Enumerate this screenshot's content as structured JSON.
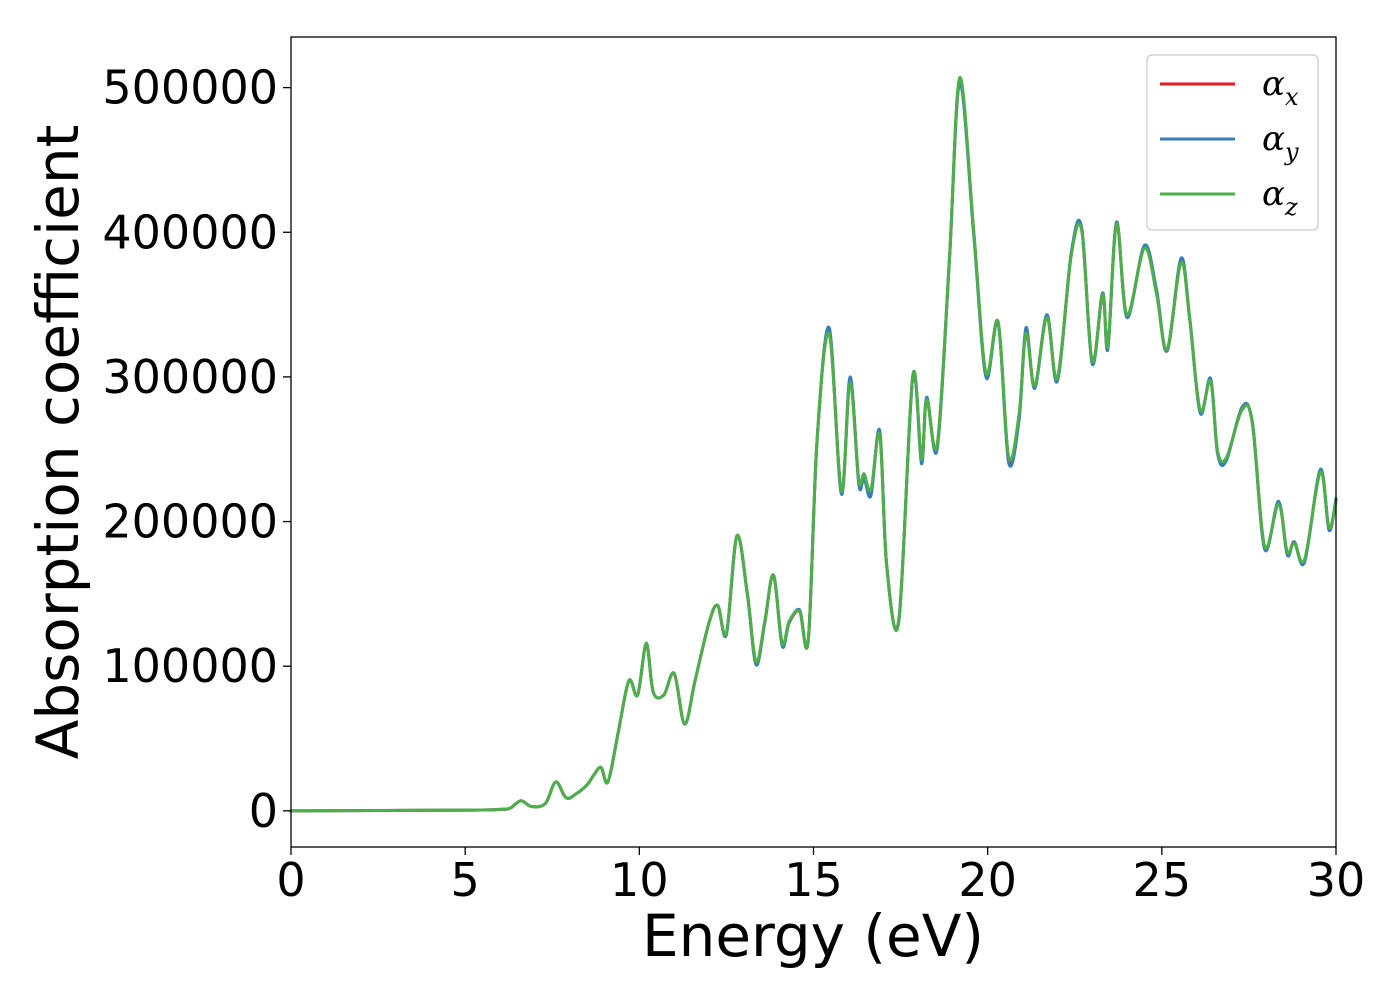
{
  "chart_data": {
    "type": "line",
    "title": "",
    "xlabel": "Energy (eV)",
    "ylabel": "Absorption coefficient",
    "xlim": [
      0,
      30
    ],
    "ylim": [
      -25000,
      535000
    ],
    "xticks": [
      0,
      5,
      10,
      15,
      20,
      25,
      30
    ],
    "yticks": [
      0,
      100000,
      200000,
      300000,
      400000,
      500000
    ],
    "grid": false,
    "legend_position": "top-right",
    "series": [
      {
        "name": "αx",
        "label_base": "α",
        "label_sub": "x",
        "color": "#e41a1c",
        "x": [
          0,
          5,
          6.0,
          6.3,
          6.6,
          6.9,
          7.3,
          7.6,
          7.9,
          8.2,
          8.5,
          8.7,
          8.9,
          9.1,
          9.4,
          9.7,
          9.95,
          10.2,
          10.4,
          10.7,
          11.0,
          11.3,
          11.6,
          12.0,
          12.25,
          12.5,
          12.8,
          13.1,
          13.35,
          13.6,
          13.85,
          14.1,
          14.3,
          14.6,
          14.85,
          15.1,
          15.45,
          15.8,
          16.05,
          16.3,
          16.45,
          16.65,
          16.9,
          17.1,
          17.45,
          17.85,
          18.1,
          18.25,
          18.55,
          18.9,
          19.2,
          19.6,
          19.95,
          20.3,
          20.6,
          20.9,
          21.1,
          21.35,
          21.7,
          22.0,
          22.4,
          22.7,
          23.0,
          23.3,
          23.45,
          23.7,
          24.0,
          24.5,
          24.85,
          25.15,
          25.55,
          25.8,
          26.1,
          26.4,
          26.6,
          26.85,
          27.3,
          27.6,
          27.95,
          28.35,
          28.6,
          28.8,
          29.1,
          29.55,
          29.8,
          30
        ],
        "y": [
          0,
          500,
          1000,
          2000,
          7000,
          3000,
          5000,
          20000,
          9000,
          12000,
          18000,
          25000,
          30000,
          20000,
          55000,
          90000,
          80000,
          115000,
          82000,
          80000,
          95000,
          60000,
          90000,
          130000,
          142000,
          122000,
          190000,
          150000,
          102000,
          130000,
          163000,
          115000,
          130000,
          138000,
          118000,
          255000,
          332000,
          220000,
          298000,
          228000,
          232000,
          220000,
          262000,
          170000,
          132000,
          300000,
          242000,
          285000,
          252000,
          380000,
          505000,
          400000,
          302000,
          338000,
          243000,
          272000,
          332000,
          293000,
          342000,
          298000,
          385000,
          402000,
          310000,
          358000,
          320000,
          407000,
          342000,
          390000,
          358000,
          318000,
          380000,
          340000,
          276000,
          298000,
          248000,
          243000,
          278000,
          268000,
          182000,
          213000,
          178000,
          186000,
          173000,
          235000,
          195000,
          215000
        ]
      },
      {
        "name": "αy",
        "label_base": "α",
        "label_sub": "y",
        "color": "#377eb8",
        "x": [
          0,
          5,
          6.0,
          6.3,
          6.6,
          6.9,
          7.3,
          7.6,
          7.9,
          8.2,
          8.5,
          8.7,
          8.9,
          9.1,
          9.4,
          9.7,
          9.95,
          10.2,
          10.4,
          10.7,
          11.0,
          11.3,
          11.6,
          12.0,
          12.25,
          12.5,
          12.8,
          13.1,
          13.35,
          13.6,
          13.85,
          14.1,
          14.3,
          14.6,
          14.85,
          15.1,
          15.45,
          15.8,
          16.05,
          16.3,
          16.45,
          16.65,
          16.9,
          17.1,
          17.45,
          17.85,
          18.1,
          18.25,
          18.55,
          18.9,
          19.2,
          19.6,
          19.95,
          20.3,
          20.6,
          20.9,
          21.1,
          21.35,
          21.7,
          22.0,
          22.4,
          22.7,
          23.0,
          23.3,
          23.45,
          23.7,
          24.0,
          24.5,
          24.85,
          25.15,
          25.55,
          25.8,
          26.1,
          26.4,
          26.6,
          26.85,
          27.3,
          27.6,
          27.95,
          28.35,
          28.6,
          28.8,
          29.1,
          29.55,
          29.8,
          30
        ],
        "y": [
          0,
          500,
          1000,
          2000,
          7000,
          3000,
          5000,
          20000,
          9000,
          12000,
          18000,
          25000,
          30000,
          20000,
          55000,
          90000,
          80000,
          115000,
          82000,
          80000,
          95000,
          60000,
          90000,
          130000,
          142000,
          122000,
          190000,
          150000,
          101000,
          130000,
          163000,
          114000,
          130000,
          139000,
          118000,
          255000,
          334000,
          219000,
          300000,
          226000,
          230000,
          218000,
          263000,
          170000,
          132000,
          300000,
          240000,
          286000,
          250000,
          380000,
          503000,
          398000,
          300000,
          337000,
          241000,
          270000,
          334000,
          292000,
          343000,
          297000,
          386000,
          403000,
          309000,
          358000,
          319000,
          407000,
          341000,
          391000,
          360000,
          318000,
          382000,
          341000,
          275000,
          299000,
          247000,
          242000,
          279000,
          268000,
          181000,
          214000,
          177000,
          186000,
          172000,
          236000,
          194000,
          216000
        ]
      },
      {
        "name": "αz",
        "label_base": "α",
        "label_sub": "z",
        "color": "#4daf4a",
        "x": [
          0,
          5,
          6.0,
          6.3,
          6.6,
          6.9,
          7.3,
          7.6,
          7.9,
          8.2,
          8.5,
          8.7,
          8.9,
          9.1,
          9.4,
          9.7,
          9.95,
          10.2,
          10.4,
          10.7,
          11.0,
          11.3,
          11.6,
          12.0,
          12.25,
          12.5,
          12.8,
          13.1,
          13.35,
          13.6,
          13.85,
          14.1,
          14.3,
          14.6,
          14.85,
          15.1,
          15.45,
          15.8,
          16.05,
          16.3,
          16.45,
          16.65,
          16.9,
          17.1,
          17.45,
          17.85,
          18.1,
          18.25,
          18.55,
          18.9,
          19.2,
          19.6,
          19.95,
          20.3,
          20.6,
          20.9,
          21.1,
          21.35,
          21.7,
          22.0,
          22.4,
          22.7,
          23.0,
          23.3,
          23.45,
          23.7,
          24.0,
          24.5,
          24.85,
          25.15,
          25.55,
          25.8,
          26.1,
          26.4,
          26.6,
          26.85,
          27.3,
          27.6,
          27.95,
          28.35,
          28.6,
          28.8,
          29.1,
          29.55,
          29.8,
          30
        ],
        "y": [
          0,
          500,
          1000,
          2000,
          7000,
          3000,
          5000,
          20000,
          9000,
          12000,
          18000,
          25000,
          30000,
          20000,
          55000,
          90000,
          80000,
          116000,
          82000,
          80000,
          95000,
          60000,
          90000,
          130000,
          142000,
          123000,
          190000,
          151000,
          103000,
          131000,
          163000,
          116000,
          131000,
          138000,
          118000,
          256000,
          330000,
          221000,
          296000,
          229000,
          233000,
          222000,
          260000,
          170000,
          131000,
          301000,
          243000,
          284000,
          253000,
          381000,
          507000,
          401000,
          303000,
          338000,
          245000,
          274000,
          330000,
          294000,
          341000,
          299000,
          384000,
          401000,
          311000,
          357000,
          321000,
          406000,
          343000,
          389000,
          357000,
          319000,
          379000,
          340000,
          277000,
          297000,
          249000,
          244000,
          277000,
          269000,
          183000,
          212000,
          179000,
          185000,
          174000,
          234000,
          196000,
          214000
        ]
      }
    ]
  }
}
